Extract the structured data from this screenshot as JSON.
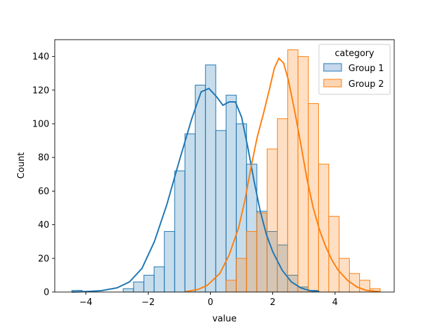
{
  "chart_data": {
    "type": "histogram",
    "xlabel": "value",
    "ylabel": "Count",
    "xlim": [
      -5.0,
      5.9
    ],
    "ylim": [
      0,
      150
    ],
    "xticks": [
      -4,
      -2,
      0,
      2,
      4
    ],
    "yticks": [
      0,
      20,
      40,
      60,
      80,
      100,
      120,
      140
    ],
    "grid": false,
    "legend": {
      "title": "category",
      "placement": "upper right"
    },
    "bin_edges": [
      -4.45,
      -4.12,
      -3.79,
      -3.46,
      -3.13,
      -2.8,
      -2.47,
      -2.14,
      -1.81,
      -1.48,
      -1.15,
      -0.82,
      -0.49,
      -0.16,
      0.17,
      0.5,
      0.83,
      1.16,
      1.49,
      1.82,
      2.15,
      2.48,
      2.81,
      3.14,
      3.47,
      3.8,
      4.13,
      4.46,
      4.79,
      5.12,
      5.45
    ],
    "series": [
      {
        "name": "Group 1",
        "color": "#1f77b4",
        "fill": "#c5d8ed",
        "counts": [
          1,
          0,
          0,
          0,
          0,
          2,
          6,
          10,
          15,
          36,
          72,
          94,
          123,
          135,
          96,
          117,
          100,
          76,
          48,
          36,
          28,
          10,
          3,
          1,
          0,
          0,
          0,
          0,
          0,
          0
        ],
        "kde": [
          [
            -4.45,
            0
          ],
          [
            -4.0,
            0.3
          ],
          [
            -3.5,
            0.8
          ],
          [
            -3.0,
            2.5
          ],
          [
            -2.6,
            6
          ],
          [
            -2.2,
            14
          ],
          [
            -1.8,
            30
          ],
          [
            -1.4,
            52
          ],
          [
            -1.0,
            78
          ],
          [
            -0.6,
            103
          ],
          [
            -0.3,
            119
          ],
          [
            -0.05,
            121
          ],
          [
            0.2,
            116
          ],
          [
            0.4,
            111
          ],
          [
            0.6,
            113
          ],
          [
            0.8,
            113
          ],
          [
            1.0,
            104
          ],
          [
            1.2,
            86
          ],
          [
            1.4,
            66
          ],
          [
            1.6,
            48
          ],
          [
            1.8,
            34
          ],
          [
            2.0,
            24
          ],
          [
            2.3,
            13
          ],
          [
            2.6,
            6
          ],
          [
            2.9,
            2.5
          ],
          [
            3.2,
            0.8
          ],
          [
            3.5,
            0.2
          ]
        ]
      },
      {
        "name": "Group 2",
        "color": "#ff7f0e",
        "fill": "#fdd4b1",
        "counts": [
          0,
          0,
          0,
          0,
          0,
          0,
          0,
          0,
          0,
          0,
          0,
          0,
          0,
          0,
          0,
          7,
          20,
          36,
          47,
          85,
          103,
          144,
          140,
          112,
          76,
          45,
          20,
          11,
          7,
          2
        ],
        "kde": [
          [
            -0.8,
            0.2
          ],
          [
            -0.4,
            1.5
          ],
          [
            -0.1,
            4
          ],
          [
            0.3,
            11
          ],
          [
            0.6,
            22
          ],
          [
            0.9,
            38
          ],
          [
            1.1,
            54
          ],
          [
            1.3,
            74
          ],
          [
            1.5,
            92
          ],
          [
            1.7,
            106
          ],
          [
            1.9,
            121
          ],
          [
            2.05,
            133
          ],
          [
            2.2,
            139
          ],
          [
            2.35,
            136
          ],
          [
            2.5,
            126
          ],
          [
            2.7,
            108
          ],
          [
            2.9,
            88
          ],
          [
            3.1,
            67
          ],
          [
            3.3,
            50
          ],
          [
            3.5,
            37
          ],
          [
            3.7,
            27
          ],
          [
            3.9,
            19
          ],
          [
            4.1,
            13
          ],
          [
            4.4,
            7
          ],
          [
            4.7,
            3
          ],
          [
            5.0,
            1
          ],
          [
            5.45,
            0.2
          ]
        ]
      }
    ]
  }
}
